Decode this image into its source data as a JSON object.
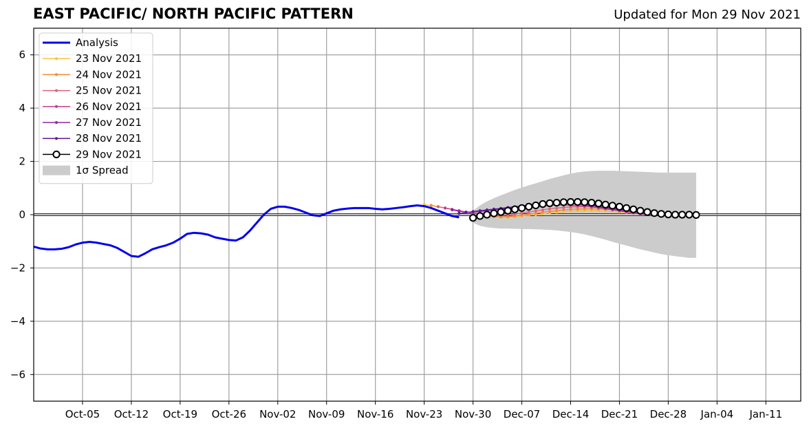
{
  "chart_data": {
    "type": "line",
    "title": "EAST PACIFIC/ NORTH PACIFIC PATTERN",
    "subtitle": "Updated for Mon 29 Nov 2021",
    "xlabel": "",
    "ylabel": "",
    "x_range": [
      "2021-09-28",
      "2022-01-16"
    ],
    "ylim": [
      -7,
      7
    ],
    "yticks": [
      -6,
      -4,
      -2,
      0,
      2,
      4,
      6
    ],
    "ytick_labels": [
      "−6",
      "−4",
      "−2",
      "0",
      "2",
      "4",
      "6"
    ],
    "xticks": [
      "2021-10-05",
      "2021-10-12",
      "2021-10-19",
      "2021-10-26",
      "2021-11-02",
      "2021-11-09",
      "2021-11-16",
      "2021-11-23",
      "2021-11-30",
      "2021-12-07",
      "2021-12-14",
      "2021-12-21",
      "2021-12-28",
      "2022-01-04",
      "2022-01-11"
    ],
    "xtick_labels": [
      "Oct-05",
      "Oct-12",
      "Oct-19",
      "Oct-26",
      "Nov-02",
      "Nov-09",
      "Nov-16",
      "Nov-23",
      "Nov-30",
      "Dec-07",
      "Dec-14",
      "Dec-21",
      "Dec-28",
      "Jan-04",
      "Jan-11"
    ],
    "grid": true,
    "legend_position": "top-left",
    "analysis": {
      "name": "Analysis",
      "color": "#0000ee",
      "start": "2021-09-28",
      "values": [
        -1.2,
        -1.27,
        -1.3,
        -1.3,
        -1.28,
        -1.22,
        -1.12,
        -1.05,
        -1.02,
        -1.05,
        -1.1,
        -1.15,
        -1.25,
        -1.4,
        -1.55,
        -1.58,
        -1.45,
        -1.3,
        -1.22,
        -1.15,
        -1.05,
        -0.9,
        -0.72,
        -0.68,
        -0.7,
        -0.75,
        -0.85,
        -0.9,
        -0.95,
        -0.97,
        -0.85,
        -0.6,
        -0.3,
        0.0,
        0.22,
        0.3,
        0.3,
        0.25,
        0.18,
        0.08,
        -0.02,
        -0.05,
        0.05,
        0.15,
        0.2,
        0.23,
        0.25,
        0.25,
        0.25,
        0.22,
        0.2,
        0.22,
        0.25,
        0.28,
        0.32,
        0.35,
        0.32,
        0.25,
        0.15,
        0.05,
        -0.05,
        -0.1
      ]
    },
    "forecasts": [
      {
        "name": "23 Nov 2021",
        "color": "#f5c242",
        "start": "2021-11-23",
        "values": [
          0.38,
          0.34,
          0.3,
          0.25,
          0.2,
          0.15,
          0.1,
          0.05,
          0.0,
          -0.05,
          -0.08,
          -0.1,
          -0.1,
          -0.08,
          -0.05,
          -0.02,
          0.0,
          0.03,
          0.06,
          0.09,
          0.11,
          0.13,
          0.14,
          0.15,
          0.15,
          0.15,
          0.14,
          0.12,
          0.1,
          0.08,
          0.05,
          0.02,
          0.0
        ]
      },
      {
        "name": "24 Nov 2021",
        "color": "#f08a3c",
        "start": "2021-11-24",
        "values": [
          0.35,
          0.3,
          0.25,
          0.2,
          0.15,
          0.1,
          0.05,
          0.0,
          -0.04,
          -0.07,
          -0.08,
          -0.07,
          -0.05,
          -0.02,
          0.02,
          0.05,
          0.09,
          0.12,
          0.15,
          0.18,
          0.2,
          0.21,
          0.22,
          0.22,
          0.21,
          0.2,
          0.18,
          0.15,
          0.12,
          0.09,
          0.06,
          0.03,
          0.0
        ]
      },
      {
        "name": "25 Nov 2021",
        "color": "#e0607a",
        "start": "2021-11-25",
        "values": [
          0.3,
          0.25,
          0.2,
          0.15,
          0.1,
          0.06,
          0.02,
          -0.01,
          -0.03,
          -0.03,
          -0.01,
          0.02,
          0.06,
          0.1,
          0.14,
          0.18,
          0.22,
          0.25,
          0.27,
          0.29,
          0.3,
          0.3,
          0.29,
          0.28,
          0.26,
          0.23,
          0.2,
          0.16,
          0.12,
          0.08,
          0.05,
          0.02
        ]
      },
      {
        "name": "26 Nov 2021",
        "color": "#c0408a",
        "start": "2021-11-26",
        "values": [
          0.25,
          0.2,
          0.15,
          0.1,
          0.06,
          0.04,
          0.04,
          0.06,
          0.1,
          0.14,
          0.18,
          0.22,
          0.26,
          0.3,
          0.33,
          0.35,
          0.36,
          0.36,
          0.35,
          0.34,
          0.32,
          0.29,
          0.26,
          0.22,
          0.18,
          0.14,
          0.1,
          0.06,
          0.02,
          0.0
        ]
      },
      {
        "name": "27 Nov 2021",
        "color": "#8e24aa",
        "start": "2021-11-27",
        "values": [
          0.18,
          0.13,
          0.1,
          0.1,
          0.12,
          0.15,
          0.18,
          0.21,
          0.24,
          0.27,
          0.3,
          0.33,
          0.36,
          0.39,
          0.41,
          0.42,
          0.42,
          0.41,
          0.39,
          0.36,
          0.33,
          0.29,
          0.25,
          0.21,
          0.17,
          0.13,
          0.09,
          0.05,
          0.02,
          0.0
        ]
      },
      {
        "name": "28 Nov 2021",
        "color": "#5b1a9a",
        "start": "2021-11-28",
        "values": [
          0.05,
          0.08,
          0.12,
          0.15,
          0.18,
          0.21,
          0.24,
          0.27,
          0.3,
          0.33,
          0.36,
          0.39,
          0.42,
          0.44,
          0.45,
          0.45,
          0.44,
          0.42,
          0.4,
          0.37,
          0.33,
          0.29,
          0.25,
          0.21,
          0.17,
          0.13,
          0.09,
          0.05,
          0.02,
          0.0
        ]
      },
      {
        "name": "29 Nov 2021",
        "color": "#000000",
        "start": "2021-11-30",
        "values": [
          -0.12,
          -0.05,
          0.0,
          0.05,
          0.1,
          0.15,
          0.2,
          0.25,
          0.3,
          0.35,
          0.4,
          0.43,
          0.45,
          0.47,
          0.48,
          0.48,
          0.47,
          0.45,
          0.42,
          0.38,
          0.34,
          0.3,
          0.25,
          0.2,
          0.15,
          0.1,
          0.06,
          0.03,
          0.01,
          0.0,
          0.0,
          0.0,
          -0.01
        ]
      }
    ],
    "spread": {
      "name": "1σ Spread",
      "color": "#cccccc",
      "start": "2021-11-30",
      "upper": [
        0.15,
        0.35,
        0.5,
        0.62,
        0.73,
        0.83,
        0.93,
        1.02,
        1.1,
        1.18,
        1.26,
        1.34,
        1.41,
        1.48,
        1.54,
        1.59,
        1.62,
        1.64,
        1.65,
        1.65,
        1.65,
        1.64,
        1.63,
        1.62,
        1.61,
        1.6,
        1.59,
        1.58,
        1.58,
        1.58,
        1.58,
        1.58,
        1.58
      ],
      "lower": [
        -0.3,
        -0.42,
        -0.47,
        -0.5,
        -0.52,
        -0.52,
        -0.53,
        -0.54,
        -0.54,
        -0.55,
        -0.56,
        -0.57,
        -0.59,
        -0.62,
        -0.65,
        -0.69,
        -0.74,
        -0.8,
        -0.87,
        -0.94,
        -1.02,
        -1.09,
        -1.16,
        -1.23,
        -1.3,
        -1.36,
        -1.42,
        -1.48,
        -1.52,
        -1.56,
        -1.59,
        -1.62,
        -1.62
      ]
    }
  }
}
